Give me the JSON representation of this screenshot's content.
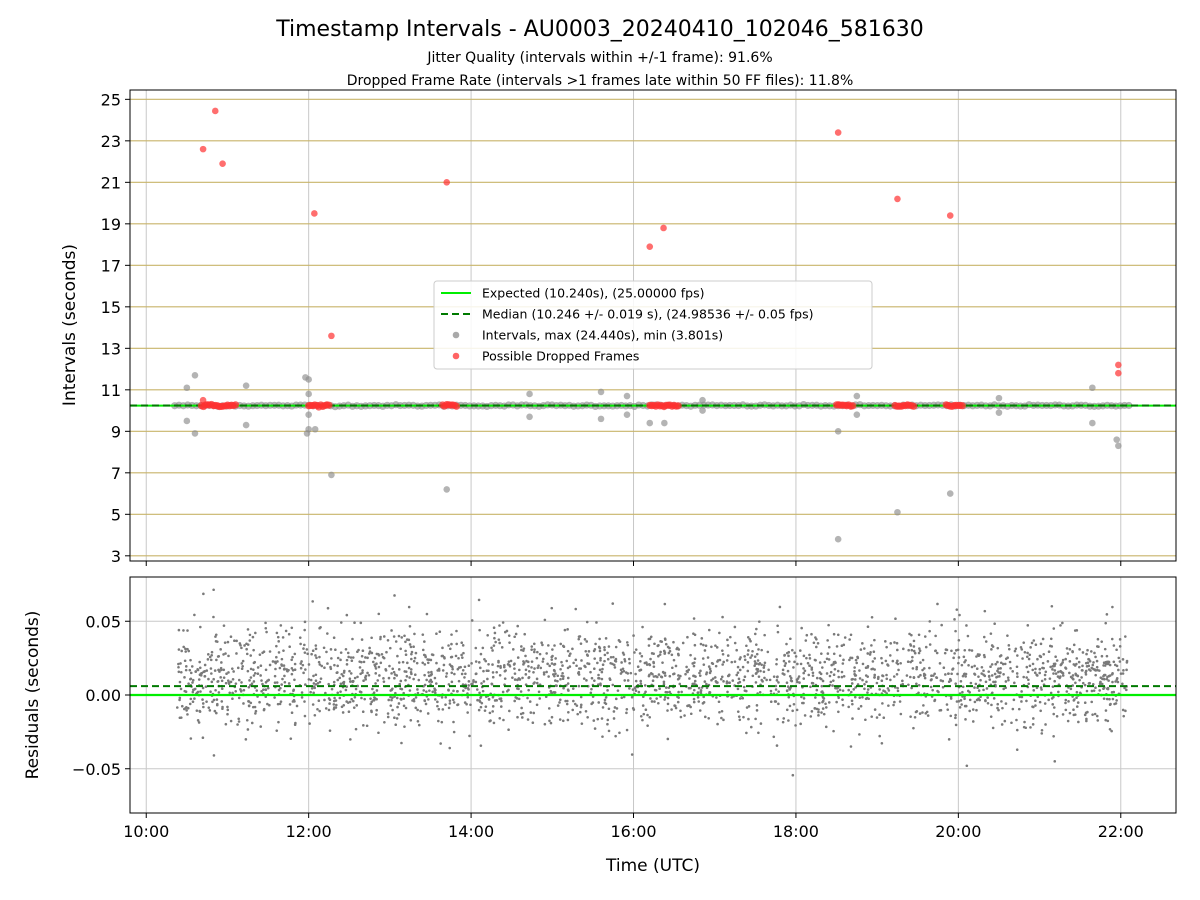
{
  "figure": {
    "title": "Timestamp Intervals - AU0003_20240410_102046_581630",
    "subtitle_1": "Jitter Quality (intervals within +/-1 frame): 91.6%",
    "subtitle_2": "Dropped Frame Rate (intervals >1 frames late within 50 FF files): 11.8%"
  },
  "chart_data": [
    {
      "type": "scatter",
      "panel": "intervals",
      "ylabel": "Intervals (seconds)",
      "xlabel": "",
      "xlim_hours": [
        9.8,
        22.68
      ],
      "ylim": [
        2.75,
        25.45
      ],
      "yticks": [
        3,
        5,
        7,
        9,
        11,
        13,
        15,
        17,
        19,
        21,
        23,
        25
      ],
      "ytick_labels": [
        "3",
        "5",
        "7",
        "9",
        "11",
        "13",
        "15",
        "17",
        "19",
        "21",
        "23",
        "25"
      ],
      "xticks_hours": [
        10,
        12,
        14,
        16,
        18,
        20,
        22
      ],
      "grid": true,
      "horizontal_frame_lines": true,
      "expected_interval": 10.24,
      "median_interval": 10.246,
      "legend": {
        "placement": "center",
        "entries": [
          {
            "label": "Expected (10.240s), (25.00000 fps)",
            "marker": "line",
            "color": "#00ee00"
          },
          {
            "label": "Median (10.246 +/- 0.019 s), (24.98536 +/- 0.05 fps)",
            "marker": "dashed-line",
            "color": "#007a00"
          },
          {
            "label": "Intervals, max (24.440s), min (3.801s)",
            "marker": "dot",
            "color": "#8c8c8c"
          },
          {
            "label": "Possible Dropped Frames",
            "marker": "dot",
            "color": "#ff3030"
          }
        ]
      },
      "baseline_band": {
        "x_start_hours": 10.35,
        "x_end_hours": 22.1,
        "y": 10.24
      },
      "gray_outliers": [
        {
          "x": 10.5,
          "y": 11.1
        },
        {
          "x": 10.5,
          "y": 9.5
        },
        {
          "x": 10.6,
          "y": 11.7
        },
        {
          "x": 10.6,
          "y": 8.9
        },
        {
          "x": 11.23,
          "y": 11.2
        },
        {
          "x": 11.23,
          "y": 9.3
        },
        {
          "x": 11.96,
          "y": 11.6
        },
        {
          "x": 11.98,
          "y": 8.9
        },
        {
          "x": 12.0,
          "y": 11.5
        },
        {
          "x": 12.0,
          "y": 10.8
        },
        {
          "x": 12.0,
          "y": 9.8
        },
        {
          "x": 12.0,
          "y": 9.1
        },
        {
          "x": 12.08,
          "y": 9.1
        },
        {
          "x": 12.28,
          "y": 6.9
        },
        {
          "x": 13.7,
          "y": 6.2
        },
        {
          "x": 14.72,
          "y": 10.8
        },
        {
          "x": 14.72,
          "y": 9.7
        },
        {
          "x": 15.6,
          "y": 10.9
        },
        {
          "x": 15.6,
          "y": 9.6
        },
        {
          "x": 15.92,
          "y": 10.7
        },
        {
          "x": 15.92,
          "y": 9.8
        },
        {
          "x": 16.2,
          "y": 9.4
        },
        {
          "x": 16.38,
          "y": 9.4
        },
        {
          "x": 16.85,
          "y": 10.5
        },
        {
          "x": 16.85,
          "y": 10.0
        },
        {
          "x": 18.52,
          "y": 9.0
        },
        {
          "x": 18.52,
          "y": 3.8
        },
        {
          "x": 18.75,
          "y": 10.7
        },
        {
          "x": 18.75,
          "y": 9.8
        },
        {
          "x": 19.25,
          "y": 5.1
        },
        {
          "x": 19.9,
          "y": 6.0
        },
        {
          "x": 20.5,
          "y": 10.6
        },
        {
          "x": 20.5,
          "y": 9.9
        },
        {
          "x": 21.65,
          "y": 11.1
        },
        {
          "x": 21.65,
          "y": 9.4
        },
        {
          "x": 21.95,
          "y": 8.6
        },
        {
          "x": 21.97,
          "y": 8.3
        }
      ],
      "dropped_frames": [
        {
          "x": 10.7,
          "y": 22.6
        },
        {
          "x": 10.85,
          "y": 24.44
        },
        {
          "x": 10.94,
          "y": 21.9
        },
        {
          "x": 10.7,
          "y": 10.5
        },
        {
          "x": 12.07,
          "y": 19.5
        },
        {
          "x": 12.28,
          "y": 13.6
        },
        {
          "x": 13.7,
          "y": 21.0
        },
        {
          "x": 16.2,
          "y": 17.9
        },
        {
          "x": 16.37,
          "y": 18.8
        },
        {
          "x": 18.52,
          "y": 23.4
        },
        {
          "x": 19.25,
          "y": 20.2
        },
        {
          "x": 19.9,
          "y": 19.4
        },
        {
          "x": 21.97,
          "y": 12.2
        },
        {
          "x": 21.97,
          "y": 11.8
        }
      ],
      "dropped_clusters_hours": [
        [
          10.68,
          11.1
        ],
        [
          12.0,
          12.25
        ],
        [
          13.65,
          13.82
        ],
        [
          16.2,
          16.55
        ],
        [
          18.5,
          18.7
        ],
        [
          19.22,
          19.45
        ],
        [
          19.85,
          20.05
        ]
      ]
    },
    {
      "type": "scatter",
      "panel": "residuals",
      "ylabel": "Residuals (seconds)",
      "xlabel": "Time (UTC)",
      "xlim_hours": [
        9.8,
        22.68
      ],
      "ylim": [
        -0.08,
        0.08
      ],
      "yticks": [
        -0.05,
        0.0,
        0.05
      ],
      "ytick_labels": [
        "−0.05",
        "0.00",
        "0.05"
      ],
      "xticks_hours": [
        10,
        12,
        14,
        16,
        18,
        20,
        22
      ],
      "xtick_labels": [
        "10:00",
        "12:00",
        "14:00",
        "16:00",
        "18:00",
        "20:00",
        "22:00"
      ],
      "grid": true,
      "expected_residual": 0.0,
      "median_residual": 0.006,
      "point_color": "#7a7a7a",
      "x_range_hours": [
        10.38,
        22.08
      ],
      "residual_spread": {
        "min": -0.067,
        "max": 0.08,
        "typical_min": -0.03,
        "typical_max": 0.05
      }
    }
  ],
  "colors": {
    "expected": "#00ee00",
    "median": "#007a00",
    "interval_points": "#8c8c8c",
    "dropped": "#ff3030",
    "frame_lines": "#c8b46a",
    "grid": "#c8c8c8",
    "residual_points": "#7a7a7a"
  }
}
